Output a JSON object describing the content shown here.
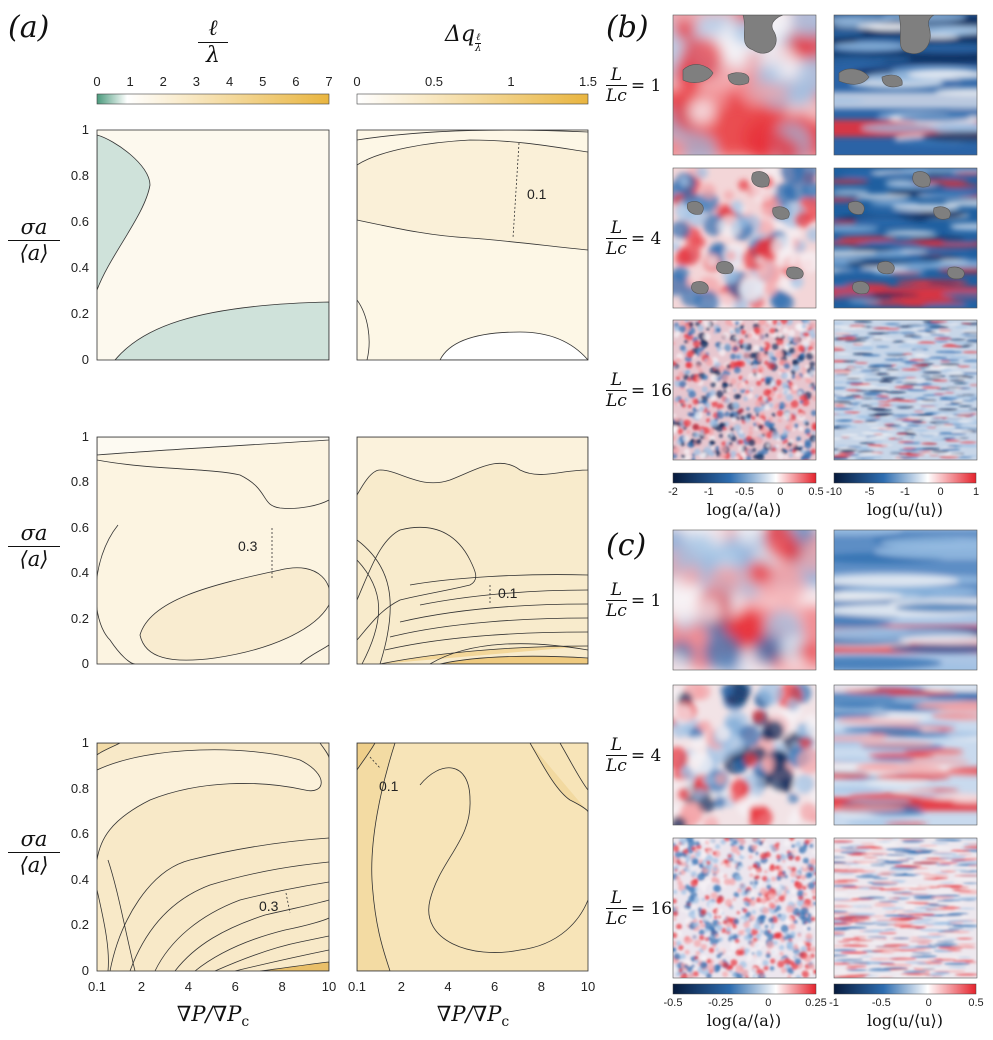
{
  "panel_labels": {
    "a": "(a)",
    "b": "(b)",
    "c": "(c)"
  },
  "colors": {
    "teal": "#cfe2da",
    "cream": "#fdf8ea",
    "light": "#faf0d8",
    "mid": "#f5e3b8",
    "gold": "#e9bd60",
    "red": "#e8323a",
    "blue": "#1f5fa0",
    "navy": "#0c2a5a",
    "obstacle": "#7f7f7f"
  },
  "column_headers": {
    "left_num": "ℓ",
    "left_den": "λ",
    "right_prefix": "Δq",
    "right_sub_num": "ℓ",
    "right_sub_den": "λ"
  },
  "colorbars": {
    "left": {
      "ticks": [
        "0",
        "1",
        "2",
        "3",
        "4",
        "5",
        "6",
        "7"
      ],
      "gradient": [
        "#4a9a7c",
        "#ffffff",
        "#e9b53f"
      ]
    },
    "right": {
      "ticks": [
        "0",
        "0.5",
        "1",
        "1.5"
      ],
      "gradient": [
        "#ffffff",
        "#e9b53f"
      ]
    }
  },
  "row_ylabel": {
    "num": "σa",
    "den": "⟨a⟩"
  },
  "chart_data": [
    {
      "type": "heatmap",
      "row": 1,
      "column": "ℓ/λ",
      "ylim": [
        0,
        1
      ],
      "xlim": [
        0.1,
        10
      ],
      "yticks": [
        "0",
        "0.2",
        "0.4",
        "0.6",
        "0.8",
        "1"
      ],
      "xticks": [],
      "contour_labels": []
    },
    {
      "type": "heatmap",
      "row": 1,
      "column": "Δq",
      "ylim": [
        0,
        1
      ],
      "xlim": [
        0.1,
        10
      ],
      "xticks": [],
      "contour_labels": [
        "0.1"
      ]
    },
    {
      "type": "heatmap",
      "row": 2,
      "column": "ℓ/λ",
      "ylim": [
        0,
        1
      ],
      "xlim": [
        0.1,
        10
      ],
      "yticks": [
        "0",
        "0.2",
        "0.4",
        "0.6",
        "0.8",
        "1"
      ],
      "xticks": [],
      "contour_labels": [
        "0.3"
      ]
    },
    {
      "type": "heatmap",
      "row": 2,
      "column": "Δq",
      "ylim": [
        0,
        1
      ],
      "xlim": [
        0.1,
        10
      ],
      "xticks": [],
      "contour_labels": [
        "0.1"
      ]
    },
    {
      "type": "heatmap",
      "row": 3,
      "column": "ℓ/λ",
      "ylim": [
        0,
        1
      ],
      "xlim": [
        0.1,
        10
      ],
      "yticks": [
        "0",
        "0.2",
        "0.4",
        "0.6",
        "0.8",
        "1"
      ],
      "xticks": [
        "0.1",
        "2",
        "4",
        "6",
        "8",
        "10"
      ],
      "xlabel": "∇P/∇Pc",
      "contour_labels": [
        "0.3"
      ]
    },
    {
      "type": "heatmap",
      "row": 3,
      "column": "Δq",
      "ylim": [
        0,
        1
      ],
      "xlim": [
        0.1,
        10
      ],
      "xticks": [
        "0.1",
        "2",
        "4",
        "6",
        "8",
        "10"
      ],
      "xlabel": "∇P/∇Pc",
      "contour_labels": [
        "0.1"
      ]
    }
  ],
  "xlabel": {
    "main": "∇P/∇P",
    "sub": "c"
  },
  "maps": {
    "row_labels": [
      {
        "num": "L",
        "den": "Lc",
        "value": "= 1"
      },
      {
        "num": "L",
        "den": "Lc",
        "value": "= 4"
      },
      {
        "num": "L",
        "den": "Lc",
        "value": "= 16"
      }
    ],
    "b_colorbars": {
      "left": {
        "ticks": [
          "-2",
          "-1",
          "-0.5",
          "0",
          "0.5"
        ],
        "label": "log(a/⟨a⟩)"
      },
      "right": {
        "ticks": [
          "-10",
          "-5",
          "-1",
          "0",
          "1"
        ],
        "label": "log(u/⟨u⟩)"
      }
    },
    "c_colorbars": {
      "left": {
        "ticks": [
          "-0.5",
          "-0.25",
          "0",
          "0.25"
        ],
        "label": "log(a/⟨a⟩)"
      },
      "right": {
        "ticks": [
          "-1",
          "-0.5",
          "0",
          "0.5"
        ],
        "label": "log(u/⟨u⟩)"
      }
    }
  }
}
